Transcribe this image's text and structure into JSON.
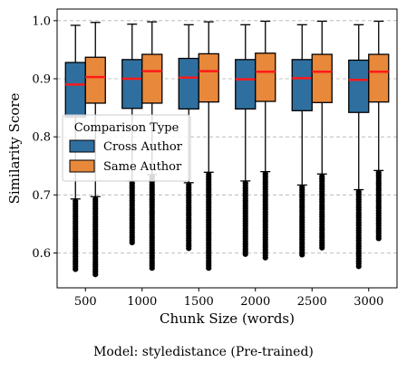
{
  "chart_data": {
    "type": "box",
    "xlabel": "Chunk Size (words)",
    "ylabel": "Similarity Score",
    "categories": [
      "500",
      "1000",
      "1500",
      "2000",
      "2500",
      "3000"
    ],
    "ylim": [
      0.54,
      1.02
    ],
    "yticks": [
      "0.6",
      "0.7",
      "0.8",
      "0.9",
      "1.0"
    ],
    "ytick_values": [
      0.6,
      0.7,
      0.8,
      0.9,
      1.0
    ],
    "grid": "y-dashed",
    "legend": {
      "title": "Comparison Type",
      "placement": "center-left",
      "entries": [
        "Cross Author",
        "Same Author"
      ]
    },
    "colors": {
      "Cross Author": "#2f6f9f",
      "Same Author": "#e8883a",
      "median": "#ff1a1a"
    },
    "series": [
      {
        "name": "Cross Author",
        "boxes": [
          {
            "q1": 0.834,
            "median": 0.89,
            "q3": 0.928,
            "whisker_low": 0.693,
            "whisker_high": 0.992,
            "outlier_low": 0.572
          },
          {
            "q1": 0.849,
            "median": 0.9,
            "q3": 0.933,
            "whisker_low": 0.724,
            "whisker_high": 0.994,
            "outlier_low": 0.618
          },
          {
            "q1": 0.848,
            "median": 0.902,
            "q3": 0.935,
            "whisker_low": 0.721,
            "whisker_high": 0.993,
            "outlier_low": 0.608
          },
          {
            "q1": 0.848,
            "median": 0.899,
            "q3": 0.933,
            "whisker_low": 0.724,
            "whisker_high": 0.993,
            "outlier_low": 0.598
          },
          {
            "q1": 0.845,
            "median": 0.901,
            "q3": 0.933,
            "whisker_low": 0.717,
            "whisker_high": 0.993,
            "outlier_low": 0.597
          },
          {
            "q1": 0.842,
            "median": 0.898,
            "q3": 0.932,
            "whisker_low": 0.709,
            "whisker_high": 0.993,
            "outlier_low": 0.577
          }
        ]
      },
      {
        "name": "Same Author",
        "boxes": [
          {
            "q1": 0.858,
            "median": 0.903,
            "q3": 0.937,
            "whisker_low": 0.697,
            "whisker_high": 0.997,
            "outlier_low": 0.563
          },
          {
            "q1": 0.858,
            "median": 0.913,
            "q3": 0.942,
            "whisker_low": 0.735,
            "whisker_high": 0.998,
            "outlier_low": 0.574
          },
          {
            "q1": 0.86,
            "median": 0.913,
            "q3": 0.943,
            "whisker_low": 0.739,
            "whisker_high": 0.998,
            "outlier_low": 0.574
          },
          {
            "q1": 0.861,
            "median": 0.912,
            "q3": 0.944,
            "whisker_low": 0.74,
            "whisker_high": 0.999,
            "outlier_low": 0.592
          },
          {
            "q1": 0.859,
            "median": 0.912,
            "q3": 0.942,
            "whisker_low": 0.736,
            "whisker_high": 0.999,
            "outlier_low": 0.609
          },
          {
            "q1": 0.86,
            "median": 0.912,
            "q3": 0.942,
            "whisker_low": 0.742,
            "whisker_high": 0.999,
            "outlier_low": 0.625
          }
        ]
      }
    ]
  },
  "caption": "Model: styledistance (Pre-trained)"
}
